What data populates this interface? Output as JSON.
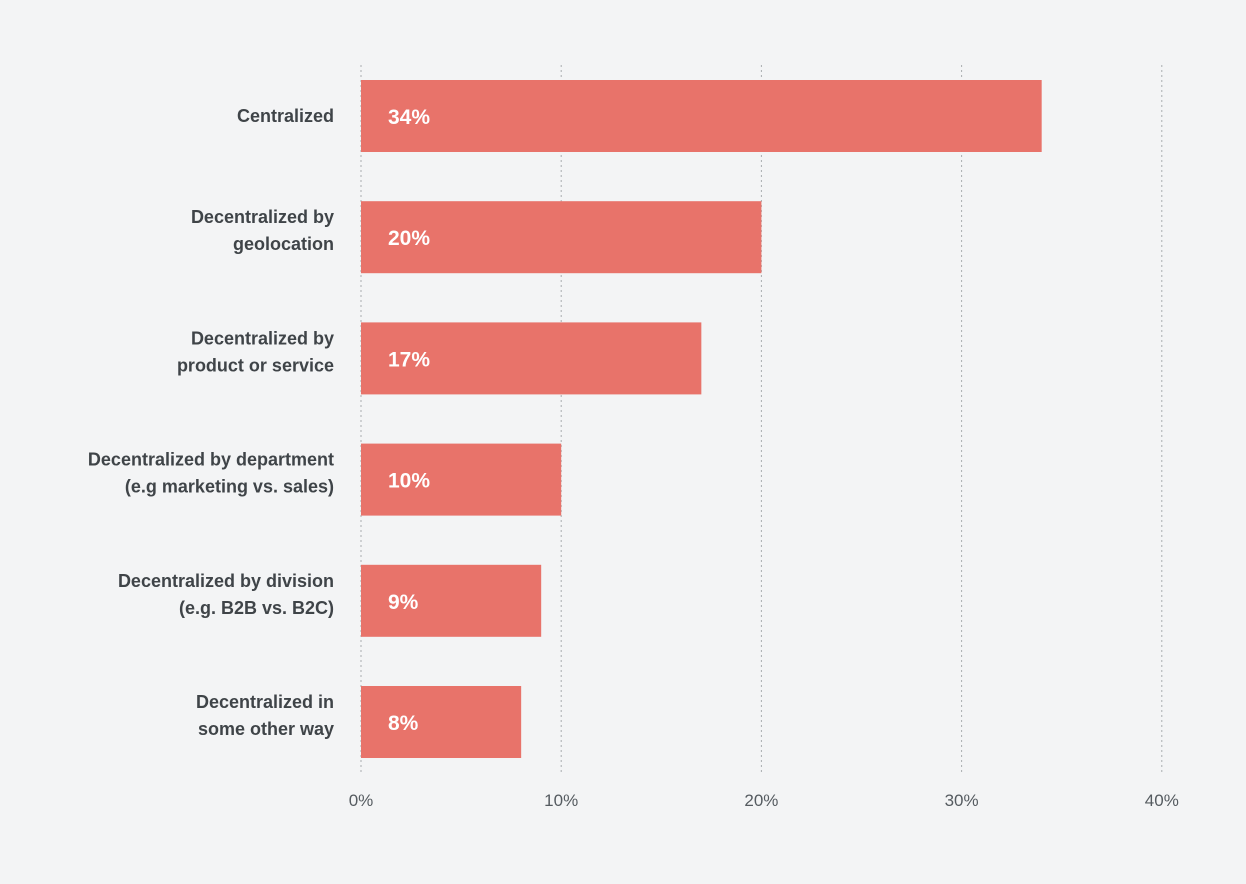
{
  "chart_data": {
    "type": "bar",
    "orientation": "horizontal",
    "categories": [
      [
        "Centralized"
      ],
      [
        "Decentralized by",
        "geolocation"
      ],
      [
        "Decentralized by",
        "product or service"
      ],
      [
        "Decentralized by department",
        "(e.g marketing vs. sales)"
      ],
      [
        "Decentralized by division",
        "(e.g. B2B vs. B2C)"
      ],
      [
        "Decentralized in",
        "some other way"
      ]
    ],
    "values": [
      34,
      20,
      17,
      10,
      9,
      8
    ],
    "data_labels": [
      "34%",
      "20%",
      "17%",
      "10%",
      "9%",
      "8%"
    ],
    "xlim": [
      0,
      40
    ],
    "x_ticks": [
      0,
      10,
      20,
      30,
      40
    ],
    "x_tick_labels": [
      "0%",
      "10%",
      "20%",
      "30%",
      "40%"
    ],
    "grid": "vertical dotted",
    "title": "",
    "xlabel": "",
    "ylabel": "",
    "colors": {
      "bar": "#e8736a",
      "background": "#f3f4f5",
      "grid": "#a9adb0"
    }
  }
}
